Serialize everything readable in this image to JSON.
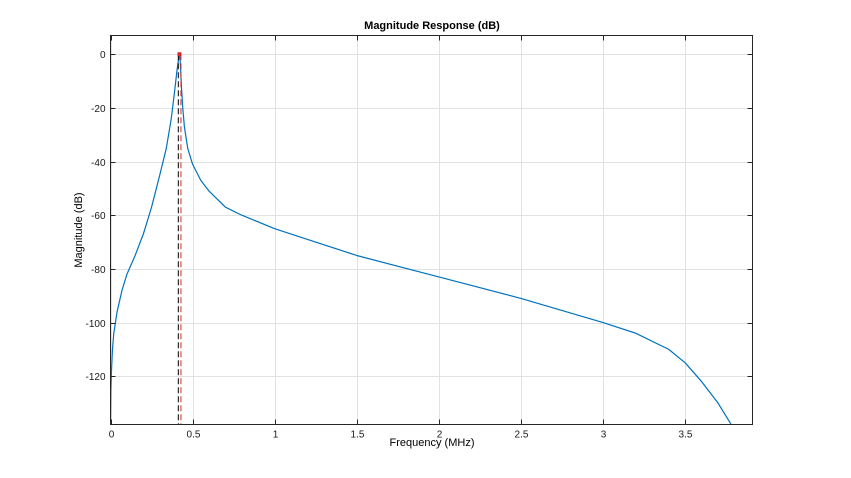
{
  "chart_data": {
    "type": "line",
    "title": "Magnitude Response (dB)",
    "xlabel": "Frequency (MHz)",
    "ylabel": "Magnitude (dB)",
    "xlim": [
      0,
      3.91
    ],
    "ylim": [
      -138,
      7
    ],
    "xticks": [
      0,
      0.5,
      1,
      1.5,
      2,
      2.5,
      3,
      3.5
    ],
    "xtick_labels": [
      "0",
      "0.5",
      "1",
      "1.5",
      "2",
      "2.5",
      "3",
      "3.5"
    ],
    "yticks": [
      0,
      -20,
      -40,
      -60,
      -80,
      -100,
      -120
    ],
    "ytick_labels": [
      "0",
      "-20",
      "-40",
      "-60",
      "-80",
      "-100",
      "-120"
    ],
    "grid": true,
    "series": [
      {
        "color": "#0072bd",
        "x": [
          0,
          0.002,
          0.006,
          0.012,
          0.02,
          0.04,
          0.07,
          0.1,
          0.15,
          0.2,
          0.25,
          0.3,
          0.34,
          0.37,
          0.39,
          0.405,
          0.415,
          0.42,
          0.425,
          0.432,
          0.44,
          0.45,
          0.47,
          0.5,
          0.55,
          0.6,
          0.7,
          0.8,
          1.0,
          1.2,
          1.5,
          2.0,
          2.5,
          3.0,
          3.2,
          3.4,
          3.5,
          3.6,
          3.7,
          3.75,
          3.8
        ],
        "y": [
          -138,
          -125,
          -118,
          -110,
          -104,
          -96,
          -88,
          -82,
          -75,
          -67,
          -57,
          -45,
          -35,
          -24,
          -14,
          -6,
          -1.5,
          0,
          -3,
          -12,
          -20,
          -27,
          -35,
          -41,
          -47,
          -51,
          -57,
          -60,
          -65,
          -69,
          -75,
          -83,
          -91,
          -100,
          -104,
          -110,
          -115,
          -122,
          -130,
          -135,
          -140
        ]
      },
      {
        "color": "#000000",
        "x": [
          0.413,
          0.413
        ],
        "y": [
          0,
          -138
        ]
      },
      {
        "color": "#d62728",
        "x": [
          0.429,
          0.429
        ],
        "y": [
          0,
          -138
        ]
      }
    ],
    "markers": [
      {
        "x": 0.42,
        "y": 0,
        "color": "#d62728"
      }
    ]
  }
}
